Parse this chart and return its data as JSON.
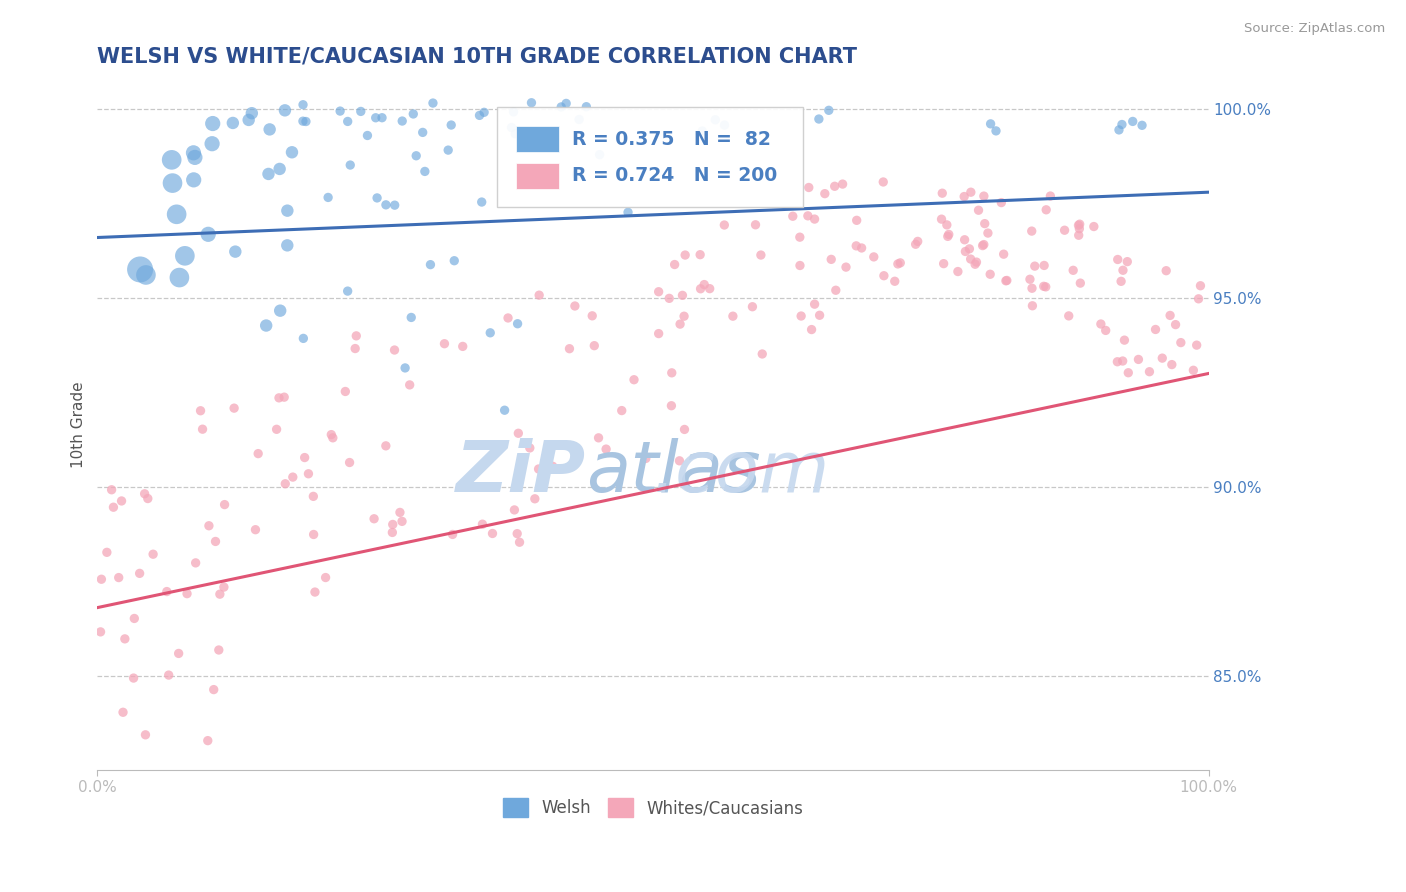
{
  "title": "WELSH VS WHITE/CAUCASIAN 10TH GRADE CORRELATION CHART",
  "source": "Source: ZipAtlas.com",
  "ylabel": "10th Grade",
  "xlim": [
    0.0,
    1.0
  ],
  "ylim": [
    0.825,
    1.008
  ],
  "yticks": [
    0.85,
    0.9,
    0.95,
    1.0
  ],
  "ytick_labels": [
    "85.0%",
    "90.0%",
    "95.0%",
    "100.0%"
  ],
  "xticks": [
    0.0,
    1.0
  ],
  "xtick_labels": [
    "0.0%",
    "100.0%"
  ],
  "welsh_R": 0.375,
  "welsh_N": 82,
  "white_R": 0.724,
  "white_N": 200,
  "title_color": "#2c4d8e",
  "blue_color": "#6fa8dc",
  "pink_color": "#f4a7b9",
  "blue_line_color": "#3d6db5",
  "pink_line_color": "#e05575",
  "grid_color": "#bbbbbb",
  "axis_label_color": "#4a7fc1",
  "watermark_color1": "#c5d8ee",
  "watermark_color2": "#a8c4e0",
  "background_color": "#ffffff",
  "legend_border_color": "#cccccc",
  "source_color": "#999999",
  "tick_color": "#888888"
}
